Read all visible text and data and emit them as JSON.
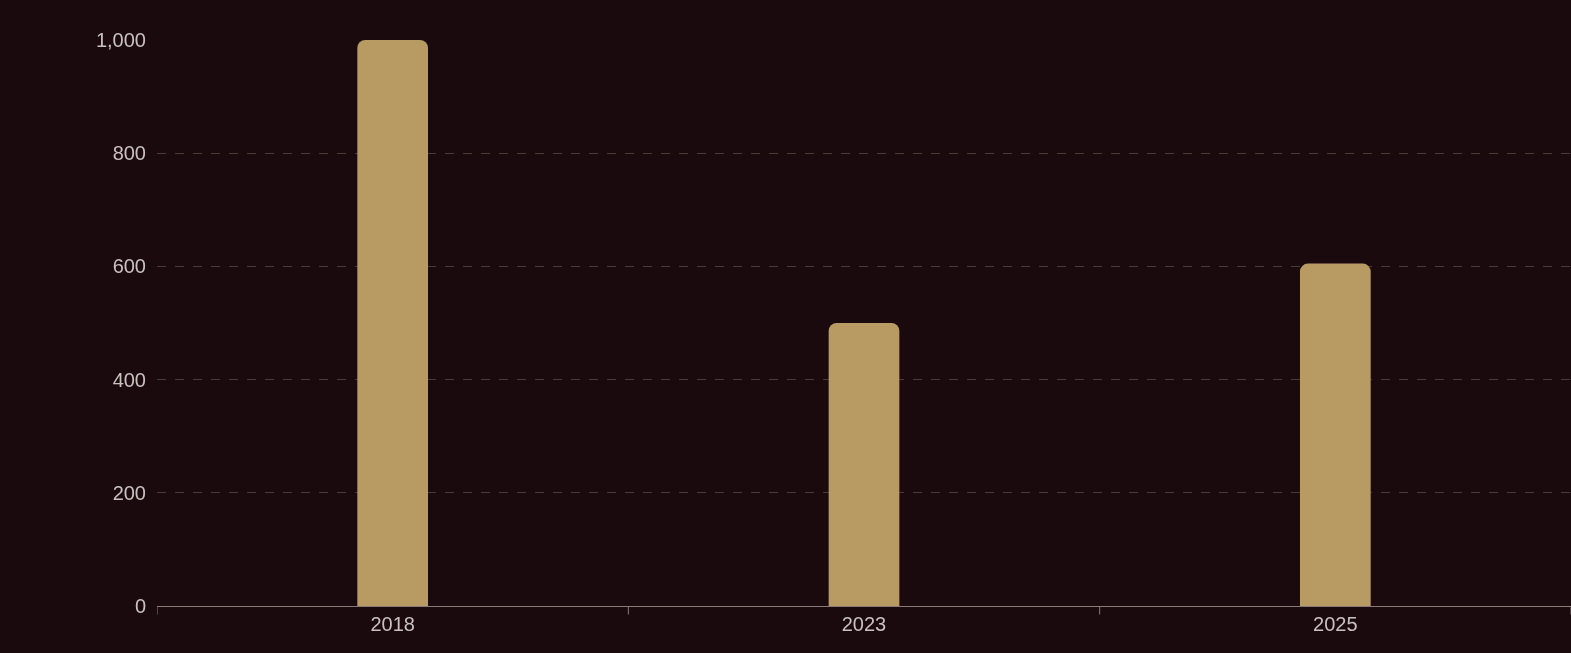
{
  "chart_data": {
    "type": "bar",
    "categories": [
      "2018",
      "2023",
      "2025"
    ],
    "values": [
      1000,
      500,
      605
    ],
    "color": "#b89a63",
    "ylim": [
      0,
      1000
    ],
    "yticks": [
      0,
      200,
      400,
      600,
      800,
      {
        "value": 1000,
        "label": "1,000"
      }
    ],
    "grid": "y",
    "legend": false
  }
}
